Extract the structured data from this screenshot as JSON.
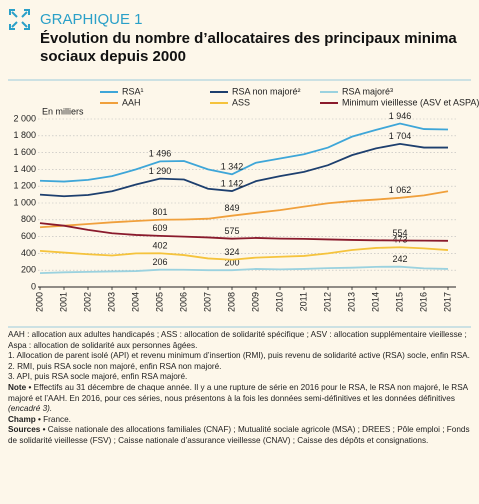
{
  "chart_data": {
    "type": "line",
    "label": "GRAPHIQUE 1",
    "title": "Évolution du nombre d’allocataires des principaux minima sociaux depuis 2000",
    "y_label": "En milliers",
    "categories": [
      "2000",
      "2001",
      "2002",
      "2003",
      "2004",
      "2005",
      "2006",
      "2007",
      "2008",
      "2009",
      "2010",
      "2011",
      "2012",
      "2013",
      "2014",
      "2015",
      "2016",
      "2017"
    ],
    "ylim": [
      0,
      2000
    ],
    "yticks": [
      0,
      200,
      400,
      600,
      800,
      {
        "value": 1000,
        "label": "1 000"
      },
      {
        "value": 1200,
        "label": "1 200"
      },
      {
        "value": 1400,
        "label": "1 400"
      },
      {
        "value": 1600,
        "label": "1 600"
      },
      {
        "value": 1800,
        "label": "1 800"
      },
      {
        "value": 2000,
        "label": "2 000"
      }
    ],
    "grid": true,
    "series": [
      {
        "name": "RSA¹",
        "color": "#3ea6d8",
        "values": [
          1265,
          1255,
          1275,
          1320,
          1400,
          1496,
          1500,
          1400,
          1342,
          1480,
          1530,
          1580,
          1660,
          1790,
          1870,
          1946,
          1880,
          1875
        ],
        "value_labels": [
          null,
          null,
          null,
          null,
          null,
          "1 496",
          null,
          null,
          "1 342",
          null,
          null,
          null,
          null,
          null,
          null,
          "1 946",
          null,
          null
        ]
      },
      {
        "name": "RSA non majoré²",
        "color": "#1d3f6e",
        "values": [
          1100,
          1080,
          1095,
          1140,
          1220,
          1290,
          1280,
          1170,
          1142,
          1260,
          1320,
          1370,
          1450,
          1570,
          1650,
          1704,
          1660,
          1660
        ],
        "value_labels": [
          null,
          null,
          null,
          null,
          null,
          "1 290",
          null,
          null,
          "1 142",
          null,
          null,
          null,
          null,
          null,
          null,
          "1 704",
          null,
          null
        ]
      },
      {
        "name": "RSA majoré³",
        "color": "#9bd2df",
        "values": [
          165,
          175,
          180,
          185,
          190,
          206,
          205,
          200,
          200,
          215,
          210,
          215,
          225,
          230,
          240,
          242,
          222,
          215
        ],
        "value_labels": [
          null,
          null,
          null,
          null,
          null,
          "206",
          null,
          null,
          "200",
          null,
          null,
          null,
          null,
          null,
          null,
          "242",
          null,
          null
        ]
      },
      {
        "name": "AAH",
        "color": "#f0a03c",
        "values": [
          711,
          730,
          750,
          770,
          786,
          801,
          804,
          813,
          849,
          883,
          915,
          957,
          997,
          1023,
          1041,
          1062,
          1091,
          1140
        ],
        "value_labels": [
          null,
          null,
          null,
          null,
          null,
          "801",
          null,
          null,
          "849",
          null,
          null,
          null,
          null,
          null,
          null,
          "1 062",
          null,
          null
        ]
      },
      {
        "name": "ASS",
        "color": "#f5c33c",
        "values": [
          430,
          410,
          390,
          375,
          400,
          402,
          380,
          340,
          324,
          350,
          360,
          370,
          400,
          440,
          465,
          473,
          460,
          440
        ],
        "value_labels": [
          null,
          null,
          null,
          null,
          null,
          "402",
          null,
          null,
          "324",
          null,
          null,
          null,
          null,
          null,
          null,
          "473",
          null,
          null
        ]
      },
      {
        "name": "Minimum vieillesse (ASV et ASPA)",
        "color": "#8a1a2c",
        "values": [
          760,
          730,
          680,
          640,
          620,
          609,
          600,
          590,
          575,
          584,
          576,
          573,
          566,
          560,
          556,
          554,
          552,
          550
        ],
        "value_labels": [
          null,
          null,
          null,
          null,
          null,
          "609",
          null,
          null,
          "575",
          null,
          null,
          null,
          null,
          null,
          null,
          "554",
          null,
          null
        ]
      }
    ]
  },
  "notes": {
    "abbreviations": "AAH : allocation aux adultes handicapés ; ASS : allocation de solidarité spécifique ; ASV : allocation supplémentaire vieillesse ; Aspa : allocation de solidarité aux personnes âgées.",
    "footnotes": [
      "1. Allocation de parent isolé (API) et revenu minimum d’insertion (RMI), puis revenu de solidarité active (RSA) socle, enfin RSA.",
      "2. RMI, puis RSA socle non majoré, enfin RSA non majoré.",
      "3. API, puis RSA socle majoré, enfin RSA majoré."
    ],
    "note_label": "Note •",
    "note": "Effectifs au 31 décembre de chaque année. Il y a une rupture de série en 2016 pour le RSA, le RSA non majoré, le RSA majoré et l’AAH. En 2016, pour ces séries, nous présentons à la fois les données semi-définitives et les données définitives",
    "note_ref": "(encadré 3).",
    "champ_label": "Champ •",
    "champ": "France.",
    "sources_label": "Sources •",
    "sources": "Caisse nationale des allocations familiales (CNAF) ; Mutualité sociale agricole (MSA) ; DREES ; Pôle emploi ; Fonds de solidarité vieillesse (FSV) ; Caisse nationale d’assurance vieillesse (CNAV) ; Caisse des dépôts et consignations."
  }
}
